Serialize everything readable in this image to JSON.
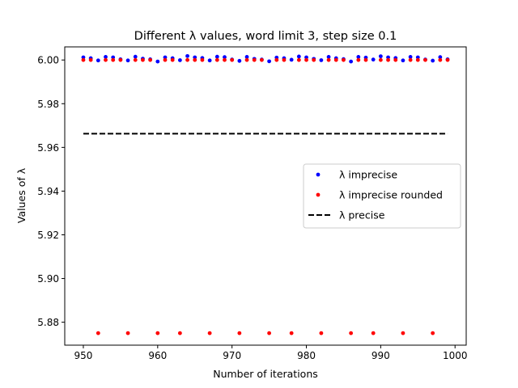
{
  "chart_data": {
    "type": "scatter",
    "title": "Different λ values, word limit 3, step size 0.1",
    "xlabel": "Number of iterations",
    "ylabel": "Values of λ",
    "xlim": [
      947.5,
      1001.5
    ],
    "ylim": [
      5.8695,
      6.006
    ],
    "x_ticks": [
      950,
      960,
      970,
      980,
      990,
      1000
    ],
    "y_ticks": [
      5.88,
      5.9,
      5.92,
      5.94,
      5.96,
      5.98,
      6.0
    ],
    "x_tick_labels": [
      "950",
      "960",
      "970",
      "980",
      "990",
      "1000"
    ],
    "y_tick_labels": [
      "5.88",
      "5.90",
      "5.92",
      "5.94",
      "5.96",
      "5.98",
      "6.00"
    ],
    "grid": false,
    "legend_position": "center-right",
    "series": [
      {
        "name": "λ imprecise",
        "kind": "points",
        "color": "#0000ff",
        "x": [
          950,
          951,
          952,
          953,
          954,
          955,
          956,
          957,
          958,
          959,
          960,
          961,
          962,
          963,
          964,
          965,
          966,
          967,
          968,
          969,
          970,
          971,
          972,
          973,
          974,
          975,
          976,
          977,
          978,
          979,
          980,
          981,
          982,
          983,
          984,
          985,
          986,
          987,
          988,
          989,
          990,
          991,
          992,
          993,
          994,
          995,
          996,
          997,
          998,
          999
        ],
        "y": [
          6.0012,
          6.0008,
          5.9998,
          6.0014,
          6.0012,
          6.0003,
          5.9998,
          6.0015,
          6.0006,
          6.0003,
          5.9993,
          6.0012,
          6.0008,
          5.9999,
          6.0018,
          6.0012,
          6.0009,
          5.9998,
          6.0015,
          6.0013,
          6.0002,
          5.9996,
          6.0014,
          6.0005,
          6.0002,
          5.9994,
          6.0011,
          6.0008,
          6.0001,
          6.0016,
          6.0012,
          6.0005,
          5.9999,
          6.0014,
          6.0008,
          6.0004,
          5.9993,
          6.0014,
          6.0011,
          6.0002,
          6.0017,
          6.0012,
          6.0009,
          5.9998,
          6.0014,
          6.0012,
          6.0002,
          5.9997,
          6.0013,
          6.0003
        ]
      },
      {
        "name": "λ imprecise rounded",
        "kind": "points",
        "color": "#ff0000",
        "x": [
          950,
          951,
          952,
          953,
          954,
          955,
          956,
          957,
          958,
          959,
          960,
          961,
          962,
          963,
          964,
          965,
          966,
          967,
          968,
          969,
          970,
          971,
          972,
          973,
          974,
          975,
          976,
          977,
          978,
          979,
          980,
          981,
          982,
          983,
          984,
          985,
          986,
          987,
          988,
          989,
          990,
          991,
          992,
          993,
          994,
          995,
          996,
          997,
          998,
          999
        ],
        "y": [
          6.0,
          6.0,
          5.875,
          6.0,
          6.0,
          6.0,
          5.875,
          6.0,
          6.0,
          6.0,
          5.875,
          6.0,
          6.0,
          5.875,
          6.0,
          6.0,
          6.0,
          5.875,
          6.0,
          6.0,
          6.0,
          5.875,
          6.0,
          6.0,
          6.0,
          5.875,
          6.0,
          6.0,
          5.875,
          6.0,
          6.0,
          6.0,
          5.875,
          6.0,
          6.0,
          6.0,
          5.875,
          6.0,
          6.0,
          5.875,
          6.0,
          6.0,
          6.0,
          5.875,
          6.0,
          6.0,
          6.0,
          5.875,
          6.0,
          6.0
        ]
      },
      {
        "name": "λ precise",
        "kind": "dashed-line",
        "color": "#000000",
        "x": [
          950,
          999
        ],
        "y": [
          5.9663,
          5.9663
        ]
      }
    ]
  }
}
